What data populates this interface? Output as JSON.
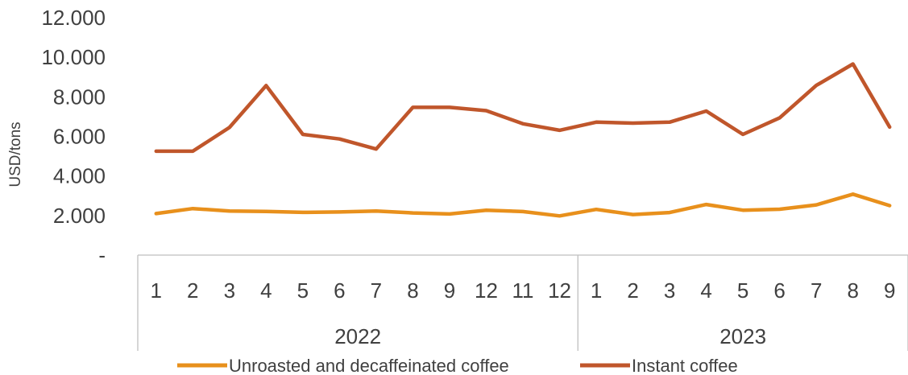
{
  "chart_data": {
    "type": "line",
    "ylabel": "USD/tons",
    "ylim": [
      0,
      12000
    ],
    "y_ticks": [
      {
        "value": 0,
        "label": "-"
      },
      {
        "value": 2000,
        "label": "2.000"
      },
      {
        "value": 4000,
        "label": "4.000"
      },
      {
        "value": 6000,
        "label": "6.000"
      },
      {
        "value": 8000,
        "label": "8.000"
      },
      {
        "value": 10000,
        "label": "10.000"
      },
      {
        "value": 12000,
        "label": "12.000"
      }
    ],
    "categories": [
      "1",
      "2",
      "3",
      "4",
      "5",
      "6",
      "7",
      "8",
      "9",
      "12",
      "11",
      "12",
      "1",
      "2",
      "3",
      "4",
      "5",
      "6",
      "7",
      "8",
      "9"
    ],
    "groups": [
      {
        "label": "2022",
        "count": 12
      },
      {
        "label": "2023",
        "count": 9
      }
    ],
    "grid": false,
    "legend_position": "bottom",
    "series": [
      {
        "name": "Unroasted and decaffeinated coffee",
        "color": "#E8901C",
        "values": [
          2100,
          2350,
          2230,
          2210,
          2160,
          2180,
          2230,
          2130,
          2080,
          2270,
          2200,
          1980,
          2310,
          2050,
          2150,
          2560,
          2270,
          2320,
          2540,
          3080,
          2500
        ]
      },
      {
        "name": "Instant coffee",
        "color": "#C0562B",
        "values": [
          5250,
          5250,
          6450,
          8570,
          6100,
          5870,
          5360,
          7470,
          7470,
          7300,
          6640,
          6310,
          6720,
          6670,
          6720,
          7280,
          6100,
          6940,
          8580,
          9660,
          6470
        ]
      }
    ]
  }
}
